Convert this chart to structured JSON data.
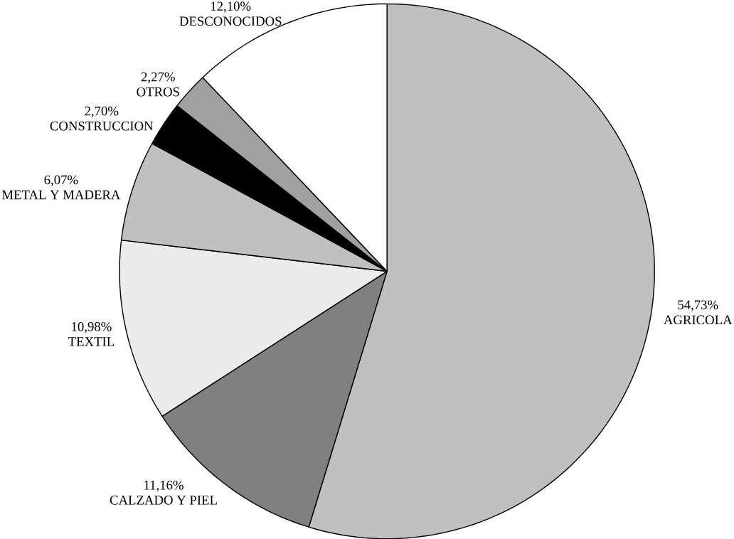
{
  "chart_data": {
    "type": "pie",
    "categories": [
      "AGRICOLA",
      "CALZADO Y PIEL",
      "TEXTIL",
      "METAL Y MADERA",
      "CONSTRUCCION",
      "OTROS",
      "DESCONOCIDOS"
    ],
    "values": [
      54.73,
      11.16,
      10.98,
      6.07,
      2.7,
      2.27,
      12.1
    ],
    "value_labels": [
      "54,73%",
      "11,16%",
      "10,98%",
      "6,07%",
      "2,70%",
      "2,27%",
      "12,10%"
    ],
    "colors": [
      "#c0c0c0",
      "#808080",
      "#ececec",
      "#c0c0c0",
      "#000000",
      "#a0a0a0",
      "#ffffff"
    ]
  }
}
